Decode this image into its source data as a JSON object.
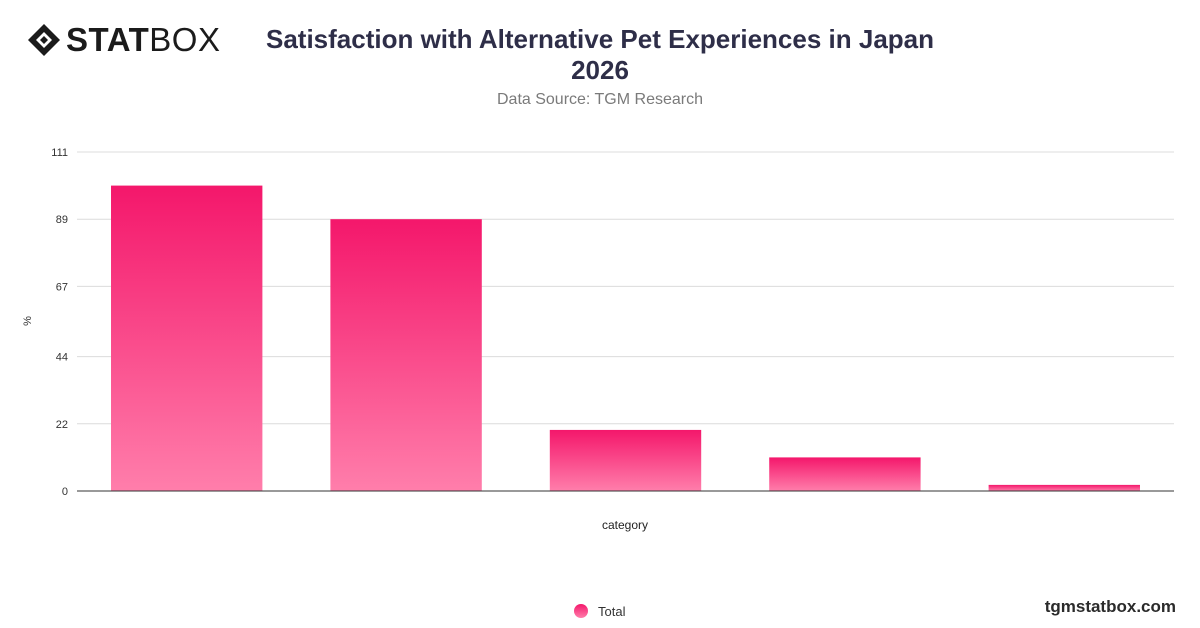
{
  "brand": {
    "logo_bold": "STAT",
    "logo_thin": "BOX",
    "website": "tgmstatbox.com"
  },
  "header": {
    "title_line1": "Satisfaction with Alternative Pet Experiences in Japan",
    "title_line2": "2026",
    "subtitle": "Data Source: TGM Research"
  },
  "colors": {
    "bar_top": "#f4176b",
    "bar_bottom": "#ff7eab",
    "grid": "#dcdcdc",
    "axis": "#333333"
  },
  "chart_data": {
    "type": "bar",
    "categories": [
      "",
      "",
      "",
      "",
      ""
    ],
    "series": [
      {
        "name": "Total",
        "values": [
          100,
          89,
          20,
          11,
          2
        ]
      }
    ],
    "ylabel": "%",
    "xlabel": "category",
    "ylim": [
      0,
      111
    ],
    "yticks": [
      0,
      22,
      44,
      67,
      89,
      111
    ],
    "grid": true,
    "legend": "bottom-center"
  }
}
